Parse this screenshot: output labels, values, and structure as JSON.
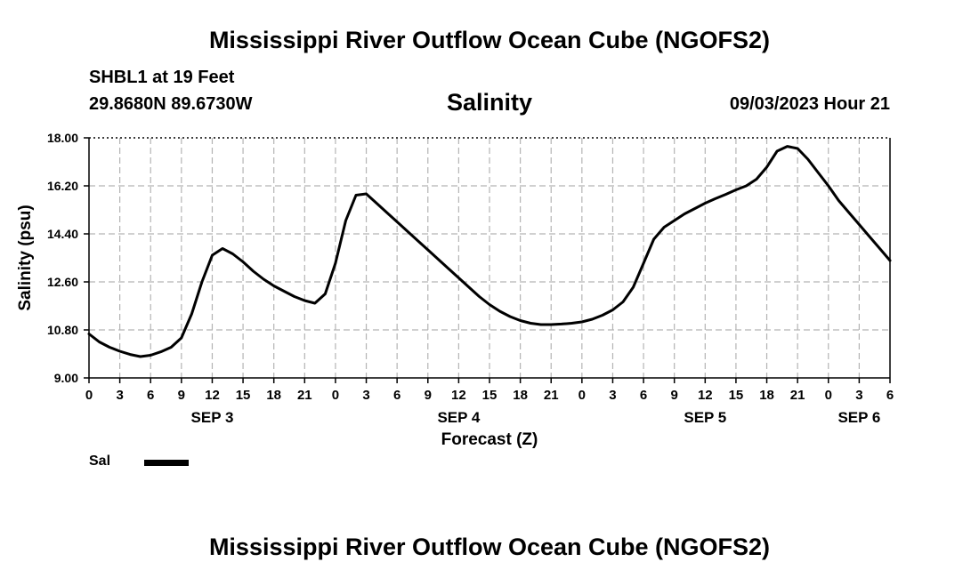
{
  "header": {
    "main_title": "Mississippi River Outflow Ocean Cube (NGOFS2)",
    "station": "SHBL1 at 19 Feet",
    "coords": "29.8680N  89.6730W",
    "chart_title": "Salinity",
    "datetime": "09/03/2023 Hour 21",
    "bottom_title": "Mississippi River Outflow Ocean Cube (NGOFS2)"
  },
  "legend": {
    "label": "Sal"
  },
  "chart_data": {
    "type": "line",
    "title": "Salinity",
    "xlabel": "Forecast (Z)",
    "ylabel": "Salinity (psu)",
    "ylim": [
      9.0,
      18.0
    ],
    "xlim": [
      0,
      78
    ],
    "grid": true,
    "y_ticks": [
      "9.00",
      "10.80",
      "12.60",
      "14.40",
      "16.20",
      "18.00"
    ],
    "y_tick_values": [
      9.0,
      10.8,
      12.6,
      14.4,
      16.2,
      18.0
    ],
    "x_ticks": [
      {
        "h": 0,
        "label": "0"
      },
      {
        "h": 3,
        "label": "3"
      },
      {
        "h": 6,
        "label": "6"
      },
      {
        "h": 9,
        "label": "9"
      },
      {
        "h": 12,
        "label": "12"
      },
      {
        "h": 15,
        "label": "15"
      },
      {
        "h": 18,
        "label": "18"
      },
      {
        "h": 21,
        "label": "21"
      },
      {
        "h": 24,
        "label": "0"
      },
      {
        "h": 27,
        "label": "3"
      },
      {
        "h": 30,
        "label": "6"
      },
      {
        "h": 33,
        "label": "9"
      },
      {
        "h": 36,
        "label": "12"
      },
      {
        "h": 39,
        "label": "15"
      },
      {
        "h": 42,
        "label": "18"
      },
      {
        "h": 45,
        "label": "21"
      },
      {
        "h": 48,
        "label": "0"
      },
      {
        "h": 51,
        "label": "3"
      },
      {
        "h": 54,
        "label": "6"
      },
      {
        "h": 57,
        "label": "9"
      },
      {
        "h": 60,
        "label": "12"
      },
      {
        "h": 63,
        "label": "15"
      },
      {
        "h": 66,
        "label": "18"
      },
      {
        "h": 69,
        "label": "21"
      },
      {
        "h": 72,
        "label": "0"
      },
      {
        "h": 75,
        "label": "3"
      },
      {
        "h": 78,
        "label": "6"
      }
    ],
    "date_labels": [
      {
        "h": 12,
        "label": "SEP 3"
      },
      {
        "h": 36,
        "label": "SEP 4"
      },
      {
        "h": 60,
        "label": "SEP 5"
      },
      {
        "h": 75,
        "label": "SEP 6"
      }
    ],
    "series": [
      {
        "name": "Sal",
        "x": [
          0,
          1,
          2,
          3,
          4,
          5,
          6,
          7,
          8,
          9,
          10,
          11,
          12,
          13,
          14,
          15,
          16,
          17,
          18,
          19,
          20,
          21,
          22,
          23,
          24,
          25,
          26,
          27,
          28,
          29,
          30,
          31,
          32,
          33,
          34,
          35,
          36,
          37,
          38,
          39,
          40,
          41,
          42,
          43,
          44,
          45,
          46,
          47,
          48,
          49,
          50,
          51,
          52,
          53,
          54,
          55,
          56,
          57,
          58,
          59,
          60,
          61,
          62,
          63,
          64,
          65,
          66,
          67,
          68,
          69,
          70,
          71,
          72,
          73,
          74,
          75,
          76,
          77,
          78
        ],
        "values": [
          10.65,
          10.35,
          10.15,
          10.0,
          9.88,
          9.8,
          9.85,
          9.98,
          10.15,
          10.5,
          11.4,
          12.6,
          13.6,
          13.85,
          13.65,
          13.35,
          13.0,
          12.7,
          12.45,
          12.25,
          12.05,
          11.9,
          11.8,
          12.15,
          13.3,
          14.9,
          15.85,
          15.9,
          15.55,
          15.2,
          14.85,
          14.5,
          14.15,
          13.8,
          13.45,
          13.1,
          12.75,
          12.4,
          12.05,
          11.75,
          11.5,
          11.3,
          11.15,
          11.05,
          11.0,
          11.0,
          11.02,
          11.05,
          11.1,
          11.2,
          11.35,
          11.55,
          11.85,
          12.4,
          13.3,
          14.2,
          14.65,
          14.9,
          15.15,
          15.35,
          15.55,
          15.72,
          15.88,
          16.05,
          16.2,
          16.45,
          16.9,
          17.5,
          17.68,
          17.6,
          17.2,
          16.7,
          16.2,
          15.65,
          15.2,
          14.75,
          14.3,
          13.85,
          13.4
        ]
      }
    ]
  }
}
